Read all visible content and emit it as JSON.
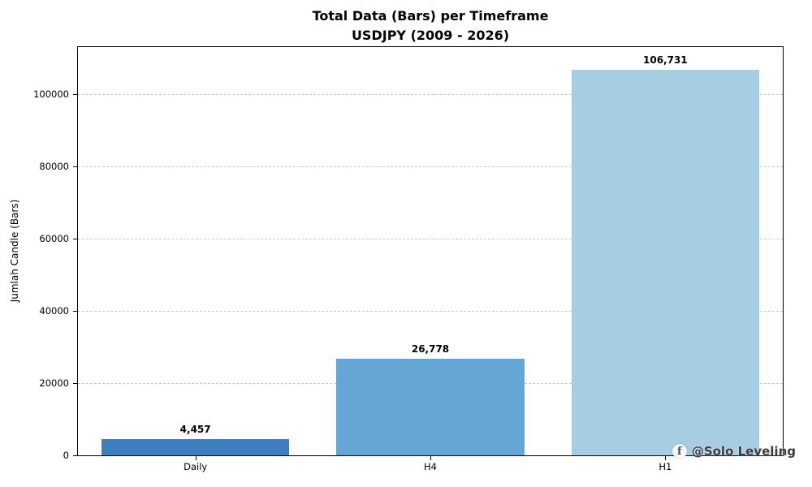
{
  "chart_data": {
    "type": "bar",
    "title_line1": "Total Data (Bars) per Timeframe",
    "title_line2": "USDJPY (2009 - 2026)",
    "categories": [
      "Daily",
      "H4",
      "H1"
    ],
    "values": [
      4457,
      26778,
      106731
    ],
    "value_labels": [
      "4,457",
      "26,778",
      "106,731"
    ],
    "ylabel": "Jumlah Candle (Bars)",
    "xlabel": "",
    "ylim": [
      0,
      113000
    ],
    "yticks": [
      0,
      20000,
      40000,
      60000,
      80000,
      100000
    ],
    "ytick_labels": [
      "0",
      "20000",
      "40000",
      "60000",
      "80000",
      "100000"
    ],
    "bar_colors": [
      "#3d7ebf",
      "#64a6d4",
      "#a7cde3"
    ],
    "grid": "horizontal-dashed",
    "legend": "none",
    "background": "#ffffff"
  },
  "watermark": {
    "text": "@Solo Leveling",
    "icon": "facebook-icon",
    "icon_glyph": "f"
  }
}
